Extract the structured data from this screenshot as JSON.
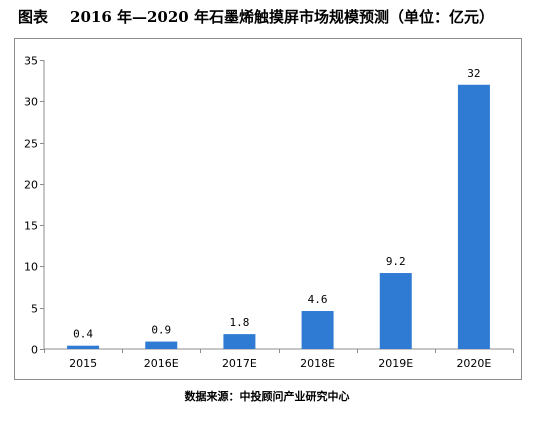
{
  "header": {
    "figure_label": "图表",
    "title": "2016 年—2020 年石墨烯触摸屏市场规模预测（单位：亿元）"
  },
  "footer": {
    "source": "数据来源：中投顾问产业研究中心"
  },
  "chart_data": {
    "type": "bar",
    "categories": [
      "2015",
      "2016E",
      "2017E",
      "2018E",
      "2019E",
      "2020E"
    ],
    "values": [
      0.4,
      0.9,
      1.8,
      4.6,
      9.2,
      32
    ],
    "data_labels": [
      "0.4",
      "0.9",
      "1.8",
      "4.6",
      "9.2",
      "32"
    ],
    "ylim": [
      0,
      35
    ],
    "yticks": [
      0,
      5,
      10,
      15,
      20,
      25,
      30,
      35
    ],
    "title": "",
    "xlabel": "",
    "ylabel": "",
    "grid": false,
    "legend": "none",
    "colors": {
      "bar": "#2f7bd3",
      "axis": "#8c8c8c",
      "frame": "#8c8c8c"
    }
  }
}
